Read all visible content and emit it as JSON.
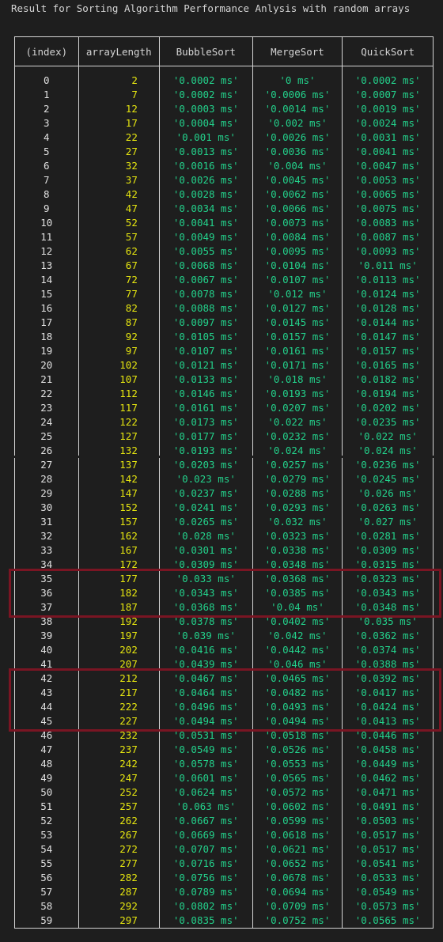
{
  "title": "Result for Sorting Algorithm Performance Anlysis with random arrays",
  "headers": [
    "(index)",
    "arrayLength",
    "BubbleSort",
    "MergeSort",
    "QuickSort"
  ],
  "rows": [
    [
      "0",
      "2",
      "'0.0002 ms'",
      "'0 ms'",
      "'0.0002 ms'"
    ],
    [
      "1",
      "7",
      "'0.0002 ms'",
      "'0.0006 ms'",
      "'0.0007 ms'"
    ],
    [
      "2",
      "12",
      "'0.0003 ms'",
      "'0.0014 ms'",
      "'0.0019 ms'"
    ],
    [
      "3",
      "17",
      "'0.0004 ms'",
      "'0.002 ms'",
      "'0.0024 ms'"
    ],
    [
      "4",
      "22",
      "'0.001 ms'",
      "'0.0026 ms'",
      "'0.0031 ms'"
    ],
    [
      "5",
      "27",
      "'0.0013 ms'",
      "'0.0036 ms'",
      "'0.0041 ms'"
    ],
    [
      "6",
      "32",
      "'0.0016 ms'",
      "'0.004 ms'",
      "'0.0047 ms'"
    ],
    [
      "7",
      "37",
      "'0.0026 ms'",
      "'0.0045 ms'",
      "'0.0053 ms'"
    ],
    [
      "8",
      "42",
      "'0.0028 ms'",
      "'0.0062 ms'",
      "'0.0065 ms'"
    ],
    [
      "9",
      "47",
      "'0.0034 ms'",
      "'0.0066 ms'",
      "'0.0075 ms'"
    ],
    [
      "10",
      "52",
      "'0.0041 ms'",
      "'0.0073 ms'",
      "'0.0083 ms'"
    ],
    [
      "11",
      "57",
      "'0.0049 ms'",
      "'0.0084 ms'",
      "'0.0087 ms'"
    ],
    [
      "12",
      "62",
      "'0.0055 ms'",
      "'0.0095 ms'",
      "'0.0093 ms'"
    ],
    [
      "13",
      "67",
      "'0.0068 ms'",
      "'0.0104 ms'",
      "'0.011 ms'"
    ],
    [
      "14",
      "72",
      "'0.0067 ms'",
      "'0.0107 ms'",
      "'0.0113 ms'"
    ],
    [
      "15",
      "77",
      "'0.0078 ms'",
      "'0.012 ms'",
      "'0.0124 ms'"
    ],
    [
      "16",
      "82",
      "'0.0088 ms'",
      "'0.0127 ms'",
      "'0.0128 ms'"
    ],
    [
      "17",
      "87",
      "'0.0097 ms'",
      "'0.0145 ms'",
      "'0.0144 ms'"
    ],
    [
      "18",
      "92",
      "'0.0105 ms'",
      "'0.0157 ms'",
      "'0.0147 ms'"
    ],
    [
      "19",
      "97",
      "'0.0107 ms'",
      "'0.0161 ms'",
      "'0.0157 ms'"
    ],
    [
      "20",
      "102",
      "'0.0121 ms'",
      "'0.0171 ms'",
      "'0.0165 ms'"
    ],
    [
      "21",
      "107",
      "'0.0133 ms'",
      "'0.018 ms'",
      "'0.0182 ms'"
    ],
    [
      "22",
      "112",
      "'0.0146 ms'",
      "'0.0193 ms'",
      "'0.0194 ms'"
    ],
    [
      "23",
      "117",
      "'0.0161 ms'",
      "'0.0207 ms'",
      "'0.0202 ms'"
    ],
    [
      "24",
      "122",
      "'0.0173 ms'",
      "'0.022 ms'",
      "'0.0235 ms'"
    ],
    [
      "25",
      "127",
      "'0.0177 ms'",
      "'0.0232 ms'",
      "'0.022 ms'"
    ],
    [
      "26",
      "132",
      "'0.0193 ms'",
      "'0.024 ms'",
      "'0.024 ms'"
    ],
    [
      "27",
      "137",
      "'0.0203 ms'",
      "'0.0257 ms'",
      "'0.0236 ms'"
    ],
    [
      "28",
      "142",
      "'0.023 ms'",
      "'0.0279 ms'",
      "'0.0245 ms'"
    ],
    [
      "29",
      "147",
      "'0.0237 ms'",
      "'0.0288 ms'",
      "'0.026 ms'"
    ],
    [
      "30",
      "152",
      "'0.0241 ms'",
      "'0.0293 ms'",
      "'0.0263 ms'"
    ],
    [
      "31",
      "157",
      "'0.0265 ms'",
      "'0.032 ms'",
      "'0.027 ms'"
    ],
    [
      "32",
      "162",
      "'0.028 ms'",
      "'0.0323 ms'",
      "'0.0281 ms'"
    ],
    [
      "33",
      "167",
      "'0.0301 ms'",
      "'0.0338 ms'",
      "'0.0309 ms'"
    ],
    [
      "34",
      "172",
      "'0.0309 ms'",
      "'0.0348 ms'",
      "'0.0315 ms'"
    ],
    [
      "35",
      "177",
      "'0.033 ms'",
      "'0.0368 ms'",
      "'0.0323 ms'"
    ],
    [
      "36",
      "182",
      "'0.0343 ms'",
      "'0.0385 ms'",
      "'0.0343 ms'"
    ],
    [
      "37",
      "187",
      "'0.0368 ms'",
      "'0.04 ms'",
      "'0.0348 ms'"
    ],
    [
      "38",
      "192",
      "'0.0378 ms'",
      "'0.0402 ms'",
      "'0.035 ms'"
    ],
    [
      "39",
      "197",
      "'0.039 ms'",
      "'0.042 ms'",
      "'0.0362 ms'"
    ],
    [
      "40",
      "202",
      "'0.0416 ms'",
      "'0.0442 ms'",
      "'0.0374 ms'"
    ],
    [
      "41",
      "207",
      "'0.0439 ms'",
      "'0.046 ms'",
      "'0.0388 ms'"
    ],
    [
      "42",
      "212",
      "'0.0467 ms'",
      "'0.0465 ms'",
      "'0.0392 ms'"
    ],
    [
      "43",
      "217",
      "'0.0464 ms'",
      "'0.0482 ms'",
      "'0.0417 ms'"
    ],
    [
      "44",
      "222",
      "'0.0496 ms'",
      "'0.0493 ms'",
      "'0.0424 ms'"
    ],
    [
      "45",
      "227",
      "'0.0494 ms'",
      "'0.0494 ms'",
      "'0.0413 ms'"
    ],
    [
      "46",
      "232",
      "'0.0531 ms'",
      "'0.0518 ms'",
      "'0.0446 ms'"
    ],
    [
      "47",
      "237",
      "'0.0549 ms'",
      "'0.0526 ms'",
      "'0.0458 ms'"
    ],
    [
      "48",
      "242",
      "'0.0578 ms'",
      "'0.0553 ms'",
      "'0.0449 ms'"
    ],
    [
      "49",
      "247",
      "'0.0601 ms'",
      "'0.0565 ms'",
      "'0.0462 ms'"
    ],
    [
      "50",
      "252",
      "'0.0624 ms'",
      "'0.0572 ms'",
      "'0.0471 ms'"
    ],
    [
      "51",
      "257",
      "'0.063 ms'",
      "'0.0602 ms'",
      "'0.0491 ms'"
    ],
    [
      "52",
      "262",
      "'0.0667 ms'",
      "'0.0599 ms'",
      "'0.0503 ms'"
    ],
    [
      "53",
      "267",
      "'0.0669 ms'",
      "'0.0618 ms'",
      "'0.0517 ms'"
    ],
    [
      "54",
      "272",
      "'0.0707 ms'",
      "'0.0621 ms'",
      "'0.0517 ms'"
    ],
    [
      "55",
      "277",
      "'0.0716 ms'",
      "'0.0652 ms'",
      "'0.0541 ms'"
    ],
    [
      "56",
      "282",
      "'0.0756 ms'",
      "'0.0678 ms'",
      "'0.0533 ms'"
    ],
    [
      "57",
      "287",
      "'0.0789 ms'",
      "'0.0694 ms'",
      "'0.0549 ms'"
    ],
    [
      "58",
      "292",
      "'0.0802 ms'",
      "'0.0709 ms'",
      "'0.0573 ms'"
    ],
    [
      "59",
      "297",
      "'0.0835 ms'",
      "'0.0752 ms'",
      "'0.0565 ms'"
    ]
  ],
  "highlighted_rows": [
    [
      35,
      37
    ],
    [
      42,
      45
    ]
  ],
  "colors": {
    "background": "#1e1e1e",
    "index": "#e0e0e0",
    "arrayLength": "#e5e510",
    "timing": "#23d18b",
    "highlight_box": "#7a1523"
  }
}
